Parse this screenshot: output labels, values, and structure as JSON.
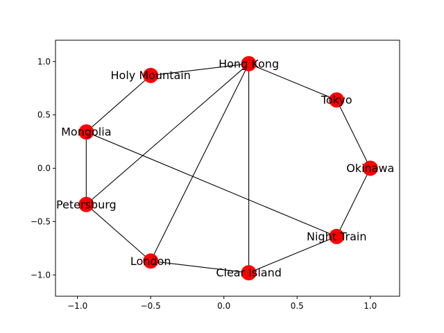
{
  "chart_data": {
    "type": "network-graph",
    "axes": {
      "xlim": [
        -1.15,
        1.2
      ],
      "ylim": [
        -1.2,
        1.2
      ],
      "x_ticks": [
        -1.0,
        -0.5,
        0.0,
        0.5,
        1.0
      ],
      "x_tick_labels": [
        "−1.0",
        "−0.5",
        "0.0",
        "0.5",
        "1.0"
      ],
      "y_ticks": [
        -1.0,
        -0.5,
        0.0,
        0.5,
        1.0
      ],
      "y_tick_labels": [
        "−1.0",
        "−0.5",
        "0.0",
        "0.5",
        "1.0"
      ],
      "grid": false
    },
    "colors": {
      "node_fill": "#ff0000",
      "edge": "#000000",
      "axes": "#000000",
      "background": "#ffffff"
    },
    "nodes": [
      {
        "id": "hong-kong",
        "label": "Hong Kong",
        "x": 0.17,
        "y": 0.98
      },
      {
        "id": "tokyo",
        "label": "Tokyo",
        "x": 0.77,
        "y": 0.64
      },
      {
        "id": "okinawa",
        "label": "Okinawa",
        "x": 1.0,
        "y": 0.0
      },
      {
        "id": "night-train",
        "label": "Night Train",
        "x": 0.77,
        "y": -0.64
      },
      {
        "id": "clear-island",
        "label": "Clear Island",
        "x": 0.17,
        "y": -0.98
      },
      {
        "id": "london",
        "label": "London",
        "x": -0.5,
        "y": -0.87
      },
      {
        "id": "petersburg",
        "label": "Petersburg",
        "x": -0.94,
        "y": -0.34
      },
      {
        "id": "mongolia",
        "label": "Mongolia",
        "x": -0.94,
        "y": 0.34
      },
      {
        "id": "holy-mountain",
        "label": "Holy Mountain",
        "x": -0.5,
        "y": 0.87
      }
    ],
    "edges": [
      [
        "hong-kong",
        "tokyo"
      ],
      [
        "tokyo",
        "okinawa"
      ],
      [
        "okinawa",
        "night-train"
      ],
      [
        "night-train",
        "clear-island"
      ],
      [
        "clear-island",
        "london"
      ],
      [
        "london",
        "petersburg"
      ],
      [
        "petersburg",
        "mongolia"
      ],
      [
        "mongolia",
        "holy-mountain"
      ],
      [
        "holy-mountain",
        "hong-kong"
      ],
      [
        "hong-kong",
        "petersburg"
      ],
      [
        "hong-kong",
        "london"
      ],
      [
        "hong-kong",
        "clear-island"
      ],
      [
        "mongolia",
        "night-train"
      ]
    ]
  }
}
